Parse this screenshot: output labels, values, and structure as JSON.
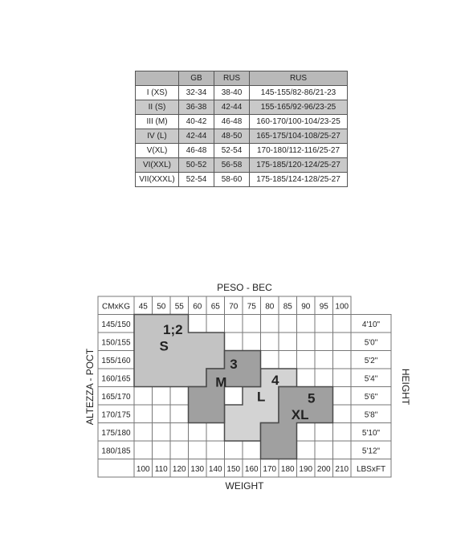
{
  "size_table": {
    "headers": [
      "",
      "GB",
      "RUS",
      "RUS"
    ],
    "rows": [
      [
        "I (XS)",
        "32-34",
        "38-40",
        "145-155/82-86/21-23"
      ],
      [
        "II (S)",
        "36-38",
        "42-44",
        "155-165/92-96/23-25"
      ],
      [
        "III (M)",
        "40-42",
        "46-48",
        "160-170/100-104/23-25"
      ],
      [
        "IV (L)",
        "42-44",
        "48-50",
        "165-175/104-108/25-27"
      ],
      [
        "V(XL)",
        "46-48",
        "52-54",
        "170-180/112-116/25-27"
      ],
      [
        "VI(XXL)",
        "50-52",
        "56-58",
        "175-185/120-124/25-27"
      ],
      [
        "VII(XXXL)",
        "52-54",
        "58-60",
        "175-185/124-128/25-27"
      ]
    ]
  },
  "chart": {
    "top_title": "PESO - BEC",
    "bottom_title": "WEIGHT",
    "left_title": "ALTEZZA - POCT",
    "right_title": "HEIGHT",
    "corner_top_left": "CMxKG",
    "corner_bottom_right": "LBSxFT",
    "kg_columns": [
      "45",
      "50",
      "55",
      "60",
      "65",
      "70",
      "75",
      "80",
      "85",
      "90",
      "95",
      "100"
    ],
    "lbs_columns": [
      "100",
      "110",
      "120",
      "130",
      "140",
      "150",
      "160",
      "170",
      "180",
      "190",
      "200",
      "210"
    ],
    "cm_rows": [
      "145/150",
      "150/155",
      "155/160",
      "160/165",
      "165/170",
      "170/175",
      "175/180",
      "180/185"
    ],
    "ft_rows": [
      "4'10\"",
      "5'0\"",
      "5'2\"",
      "5'4\"",
      "5'6\"",
      "5'8\"",
      "5'10\"",
      "5'12\""
    ],
    "zones": [
      {
        "id": "zone-s",
        "number": "1;2",
        "size": "S",
        "color": "#c3c3c3"
      },
      {
        "id": "zone-m",
        "number": "3",
        "size": "M",
        "color": "#a0a0a0"
      },
      {
        "id": "zone-l",
        "number": "4",
        "size": "L",
        "color": "#d3d3d3"
      },
      {
        "id": "zone-xl",
        "number": "5",
        "size": "XL",
        "color": "#a0a0a0"
      }
    ]
  }
}
